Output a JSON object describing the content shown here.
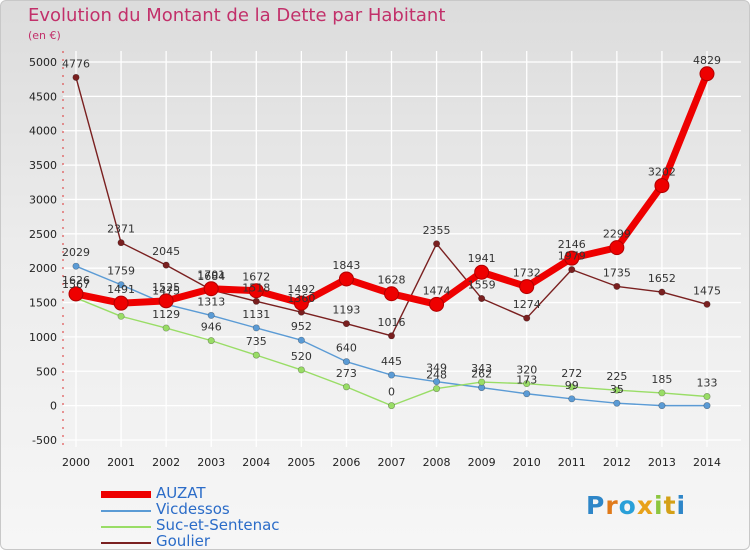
{
  "chart_data": {
    "type": "line",
    "title": "Evolution du Montant de la Dette par Habitant",
    "subtitle": "(en €)",
    "xlabel": "",
    "ylabel": "",
    "x": [
      "2000",
      "2001",
      "2002",
      "2003",
      "2004",
      "2005",
      "2006",
      "2007",
      "2008",
      "2009",
      "2010",
      "2011",
      "2012",
      "2013",
      "2014"
    ],
    "ylim": [
      -500,
      5000
    ],
    "yticks": [
      -500,
      0,
      500,
      1000,
      1500,
      2000,
      2500,
      3000,
      3500,
      4000,
      4500,
      5000
    ],
    "grid": true,
    "legend_position": "bottom-left",
    "series": [
      {
        "name": "AUZAT",
        "color": "#ee0000",
        "emphasis": true,
        "values": [
          1626,
          1491,
          1525,
          1701,
          1672,
          1492,
          1843,
          1628,
          1474,
          1941,
          1732,
          2146,
          2299,
          3202,
          4829
        ],
        "labels": [
          "1626",
          "1491",
          "1525",
          "1701",
          "1672",
          "1492",
          "1843",
          "1628",
          "1474",
          "1941",
          "1732",
          "2146",
          "2299",
          "3202",
          "4829"
        ]
      },
      {
        "name": "Vicdessos",
        "color": "#5b9bd5",
        "values": [
          2029,
          1759,
          1475,
          1313,
          1131,
          952,
          640,
          445,
          349,
          262,
          173,
          99,
          35,
          0,
          0
        ],
        "labels": [
          "2029",
          "1759",
          "1475",
          "1313",
          "1131",
          "952",
          "640",
          "445",
          "349",
          "262",
          "173",
          "99",
          "35",
          "",
          ""
        ]
      },
      {
        "name": "Suc-et-Sentenac",
        "color": "#99dd66",
        "values": [
          1567,
          1300,
          1129,
          946,
          735,
          520,
          273,
          0,
          248,
          343,
          320,
          272,
          225,
          185,
          133
        ],
        "labels": [
          "1567",
          "",
          "1129",
          "946",
          "735",
          "520",
          "273",
          "0",
          "248",
          "343",
          "320",
          "272",
          "225",
          "185",
          "133"
        ]
      },
      {
        "name": "Goulier",
        "color": "#7a2020",
        "values": [
          4776,
          2371,
          2045,
          1684,
          1518,
          1360,
          1193,
          1016,
          2355,
          1559,
          1274,
          1979,
          1735,
          1652,
          1475
        ],
        "labels": [
          "4776",
          "2371",
          "2045",
          "1684",
          "1518",
          "1360",
          "1193",
          "1016",
          "2355",
          "1559",
          "1274",
          "1979",
          "1735",
          "1652",
          "1475"
        ]
      }
    ]
  },
  "logo": [
    "P",
    "r",
    "o",
    "x",
    "i",
    "t",
    "i"
  ]
}
